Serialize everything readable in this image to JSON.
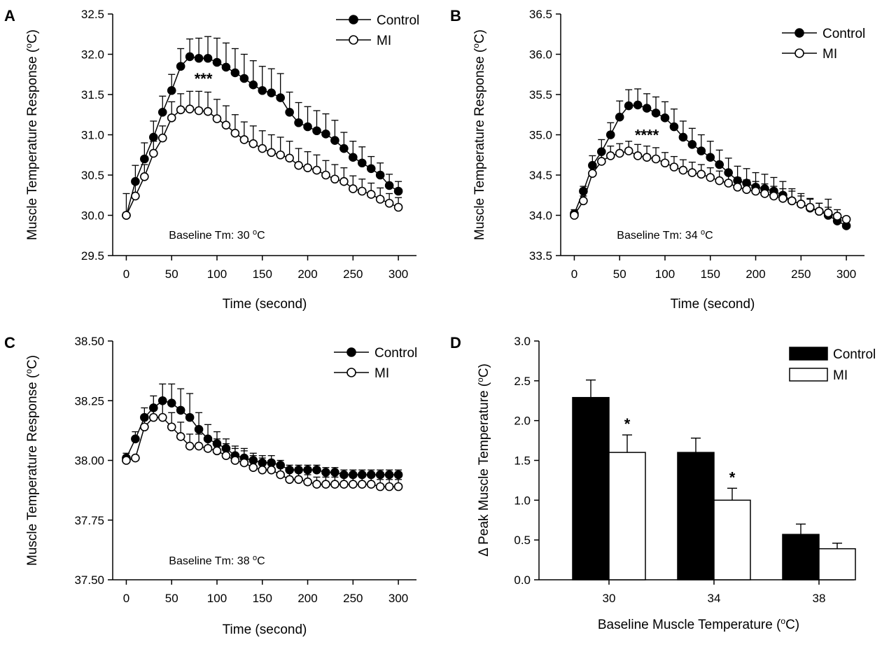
{
  "chart_data": [
    {
      "panel": "A",
      "type": "line",
      "xlabel": "Time (second)",
      "ylabel": "Muscle Temperature Response (°C)",
      "xlim": [
        -15,
        320
      ],
      "ylim": [
        29.5,
        32.5
      ],
      "xticks": [
        "0",
        "50",
        "100",
        "150",
        "200",
        "250",
        "300"
      ],
      "yticks": [
        "29.5",
        "30.0",
        "30.5",
        "31.0",
        "31.5",
        "32.0",
        "32.5"
      ],
      "x": [
        0,
        10,
        20,
        30,
        40,
        50,
        60,
        70,
        80,
        90,
        100,
        110,
        120,
        130,
        140,
        150,
        160,
        170,
        180,
        190,
        200,
        210,
        220,
        230,
        240,
        250,
        260,
        270,
        280,
        290,
        300
      ],
      "series": [
        {
          "name": "Control",
          "marker": "filled",
          "values": [
            30.0,
            30.42,
            30.7,
            30.97,
            31.28,
            31.55,
            31.85,
            31.97,
            31.95,
            31.95,
            31.9,
            31.84,
            31.77,
            31.7,
            31.62,
            31.55,
            31.52,
            31.46,
            31.28,
            31.15,
            31.1,
            31.05,
            31.01,
            30.93,
            30.83,
            30.72,
            30.65,
            30.58,
            30.5,
            30.37,
            30.3
          ],
          "errors": [
            0.27,
            0.2,
            0.2,
            0.2,
            0.2,
            0.2,
            0.22,
            0.22,
            0.25,
            0.27,
            0.3,
            0.3,
            0.3,
            0.3,
            0.3,
            0.3,
            0.3,
            0.3,
            0.25,
            0.25,
            0.25,
            0.25,
            0.25,
            0.25,
            0.2,
            0.2,
            0.2,
            0.15,
            0.15,
            0.14,
            0.12
          ]
        },
        {
          "name": "MI",
          "marker": "open",
          "values": [
            30.0,
            30.24,
            30.48,
            30.77,
            30.96,
            31.21,
            31.31,
            31.32,
            31.3,
            31.29,
            31.2,
            31.12,
            31.02,
            30.94,
            30.89,
            30.83,
            30.78,
            30.75,
            30.71,
            30.62,
            30.59,
            30.56,
            30.5,
            30.45,
            30.42,
            30.33,
            30.3,
            30.26,
            30.2,
            30.15,
            30.1
          ],
          "errors": [
            0.0,
            0.15,
            0.15,
            0.15,
            0.15,
            0.2,
            0.2,
            0.22,
            0.24,
            0.24,
            0.24,
            0.24,
            0.23,
            0.22,
            0.22,
            0.22,
            0.22,
            0.22,
            0.21,
            0.21,
            0.2,
            0.19,
            0.18,
            0.18,
            0.17,
            0.16,
            0.15,
            0.14,
            0.14,
            0.12,
            0.12
          ]
        }
      ],
      "stars": {
        "text": "***",
        "x": 85,
        "y": 31.63
      },
      "annotation": {
        "prefix": "Baseline Tm: 30 ",
        "sup": "o",
        "suffix": "C"
      },
      "legend": "top-right"
    },
    {
      "panel": "B",
      "type": "line",
      "xlabel": "Time (second)",
      "ylabel": "Muscle Temperature Response (°C)",
      "xlim": [
        -15,
        320
      ],
      "ylim": [
        33.5,
        36.5
      ],
      "xticks": [
        "0",
        "50",
        "100",
        "150",
        "200",
        "250",
        "300"
      ],
      "yticks": [
        "33.5",
        "34.0",
        "34.5",
        "35.0",
        "35.5",
        "36.0",
        "36.5"
      ],
      "x": [
        0,
        10,
        20,
        30,
        40,
        50,
        60,
        70,
        80,
        90,
        100,
        110,
        120,
        130,
        140,
        150,
        160,
        170,
        180,
        190,
        200,
        210,
        220,
        230,
        240,
        250,
        260,
        270,
        280,
        290,
        300
      ],
      "series": [
        {
          "name": "Control",
          "marker": "filled",
          "values": [
            34.02,
            34.3,
            34.62,
            34.79,
            35.0,
            35.22,
            35.36,
            35.37,
            35.33,
            35.27,
            35.21,
            35.1,
            34.97,
            34.88,
            34.8,
            34.72,
            34.63,
            34.53,
            34.43,
            34.4,
            34.35,
            34.33,
            34.3,
            34.25,
            34.18,
            34.14,
            34.09,
            34.05,
            34.0,
            33.93,
            33.87
          ],
          "errors": [
            0.05,
            0.06,
            0.12,
            0.15,
            0.15,
            0.2,
            0.2,
            0.2,
            0.18,
            0.2,
            0.2,
            0.22,
            0.2,
            0.2,
            0.2,
            0.2,
            0.18,
            0.18,
            0.18,
            0.18,
            0.18,
            0.18,
            0.17,
            0.17,
            0.15,
            0.13,
            0.12,
            0.1,
            0.1,
            0.08,
            0.07
          ]
        },
        {
          "name": "MI",
          "marker": "open",
          "values": [
            34.0,
            34.18,
            34.52,
            34.67,
            34.74,
            34.77,
            34.8,
            34.74,
            34.72,
            34.7,
            34.65,
            34.6,
            34.56,
            34.53,
            34.51,
            34.47,
            34.43,
            34.4,
            34.35,
            34.32,
            34.3,
            34.27,
            34.24,
            34.21,
            34.18,
            34.14,
            34.1,
            34.05,
            34.03,
            33.99,
            33.95
          ],
          "errors": [
            0.0,
            0.06,
            0.1,
            0.12,
            0.12,
            0.12,
            0.12,
            0.14,
            0.14,
            0.14,
            0.13,
            0.13,
            0.13,
            0.13,
            0.12,
            0.12,
            0.12,
            0.12,
            0.12,
            0.12,
            0.12,
            0.12,
            0.12,
            0.12,
            0.12,
            0.1,
            0.1,
            0.1,
            0.17,
            0.08,
            0.0
          ]
        }
      ],
      "stars": {
        "text": "****",
        "x": 80,
        "y": 34.93
      },
      "annotation": {
        "prefix": "Baseline Tm: 34 ",
        "sup": "o",
        "suffix": "C"
      },
      "legend": "top-right"
    },
    {
      "panel": "C",
      "type": "line",
      "xlabel": "Time (second)",
      "ylabel": "Muscle Temperature Response (°C)",
      "xlim": [
        -15,
        320
      ],
      "ylim": [
        37.5,
        38.5
      ],
      "xticks": [
        "0",
        "50",
        "100",
        "150",
        "200",
        "250",
        "300"
      ],
      "yticks": [
        "37.50",
        "37.75",
        "38.00",
        "38.25",
        "38.50"
      ],
      "x": [
        0,
        10,
        20,
        30,
        40,
        50,
        60,
        70,
        80,
        90,
        100,
        110,
        120,
        130,
        140,
        150,
        160,
        170,
        180,
        190,
        200,
        210,
        220,
        230,
        240,
        250,
        260,
        270,
        280,
        290,
        300
      ],
      "series": [
        {
          "name": "Control",
          "marker": "filled",
          "values": [
            38.01,
            38.09,
            38.18,
            38.22,
            38.25,
            38.24,
            38.21,
            38.18,
            38.13,
            38.09,
            38.07,
            38.05,
            38.02,
            38.01,
            38.0,
            37.99,
            37.99,
            37.98,
            37.96,
            37.96,
            37.96,
            37.96,
            37.95,
            37.95,
            37.94,
            37.94,
            37.94,
            37.94,
            37.94,
            37.94,
            37.94
          ],
          "errors": [
            0.02,
            0.03,
            0.04,
            0.05,
            0.07,
            0.08,
            0.09,
            0.1,
            0.07,
            0.06,
            0.05,
            0.04,
            0.04,
            0.04,
            0.03,
            0.03,
            0.03,
            0.02,
            0.02,
            0.02,
            0.02,
            0.02,
            0.02,
            0.02,
            0.02,
            0.02,
            0.02,
            0.02,
            0.02,
            0.02,
            0.02
          ]
        },
        {
          "name": "MI",
          "marker": "open",
          "values": [
            38.0,
            38.01,
            38.14,
            38.18,
            38.18,
            38.14,
            38.1,
            38.06,
            38.06,
            38.05,
            38.04,
            38.02,
            38.0,
            37.99,
            37.97,
            37.96,
            37.96,
            37.94,
            37.92,
            37.92,
            37.91,
            37.9,
            37.9,
            37.9,
            37.9,
            37.9,
            37.9,
            37.9,
            37.89,
            37.89,
            37.89
          ],
          "errors": [
            0.0,
            0.0,
            0.04,
            0.04,
            0.06,
            0.06,
            0.06,
            0.05,
            0.05,
            0.05,
            0.05,
            0.05,
            0.05,
            0.05,
            0.05,
            0.05,
            0.04,
            0.04,
            0.04,
            0.03,
            0.03,
            0.03,
            0.03,
            0.03,
            0.03,
            0.03,
            0.03,
            0.03,
            0.03,
            0.03,
            0.03
          ]
        }
      ],
      "annotation": {
        "prefix": "Baseline Tm: 38 ",
        "sup": "o",
        "suffix": "C"
      },
      "legend": "top-right"
    },
    {
      "panel": "D",
      "type": "bar",
      "xlabel": "Baseline Muscle Temperature (°C)",
      "ylabel": "Δ Peak Muscle Temperature (°C)",
      "ylim": [
        0,
        3.0
      ],
      "yticks": [
        "0.0",
        "0.5",
        "1.0",
        "1.5",
        "2.0",
        "2.5",
        "3.0"
      ],
      "categories": [
        "30",
        "34",
        "38"
      ],
      "series": [
        {
          "name": "Control",
          "color": "#000000",
          "values": [
            2.29,
            1.6,
            0.57
          ],
          "errors": [
            0.22,
            0.18,
            0.13
          ]
        },
        {
          "name": "MI",
          "color": "#ffffff",
          "values": [
            1.6,
            1.0,
            0.39
          ],
          "errors": [
            0.22,
            0.15,
            0.07
          ]
        }
      ],
      "stars": [
        "*",
        "*",
        ""
      ],
      "legend": "top-right"
    }
  ]
}
